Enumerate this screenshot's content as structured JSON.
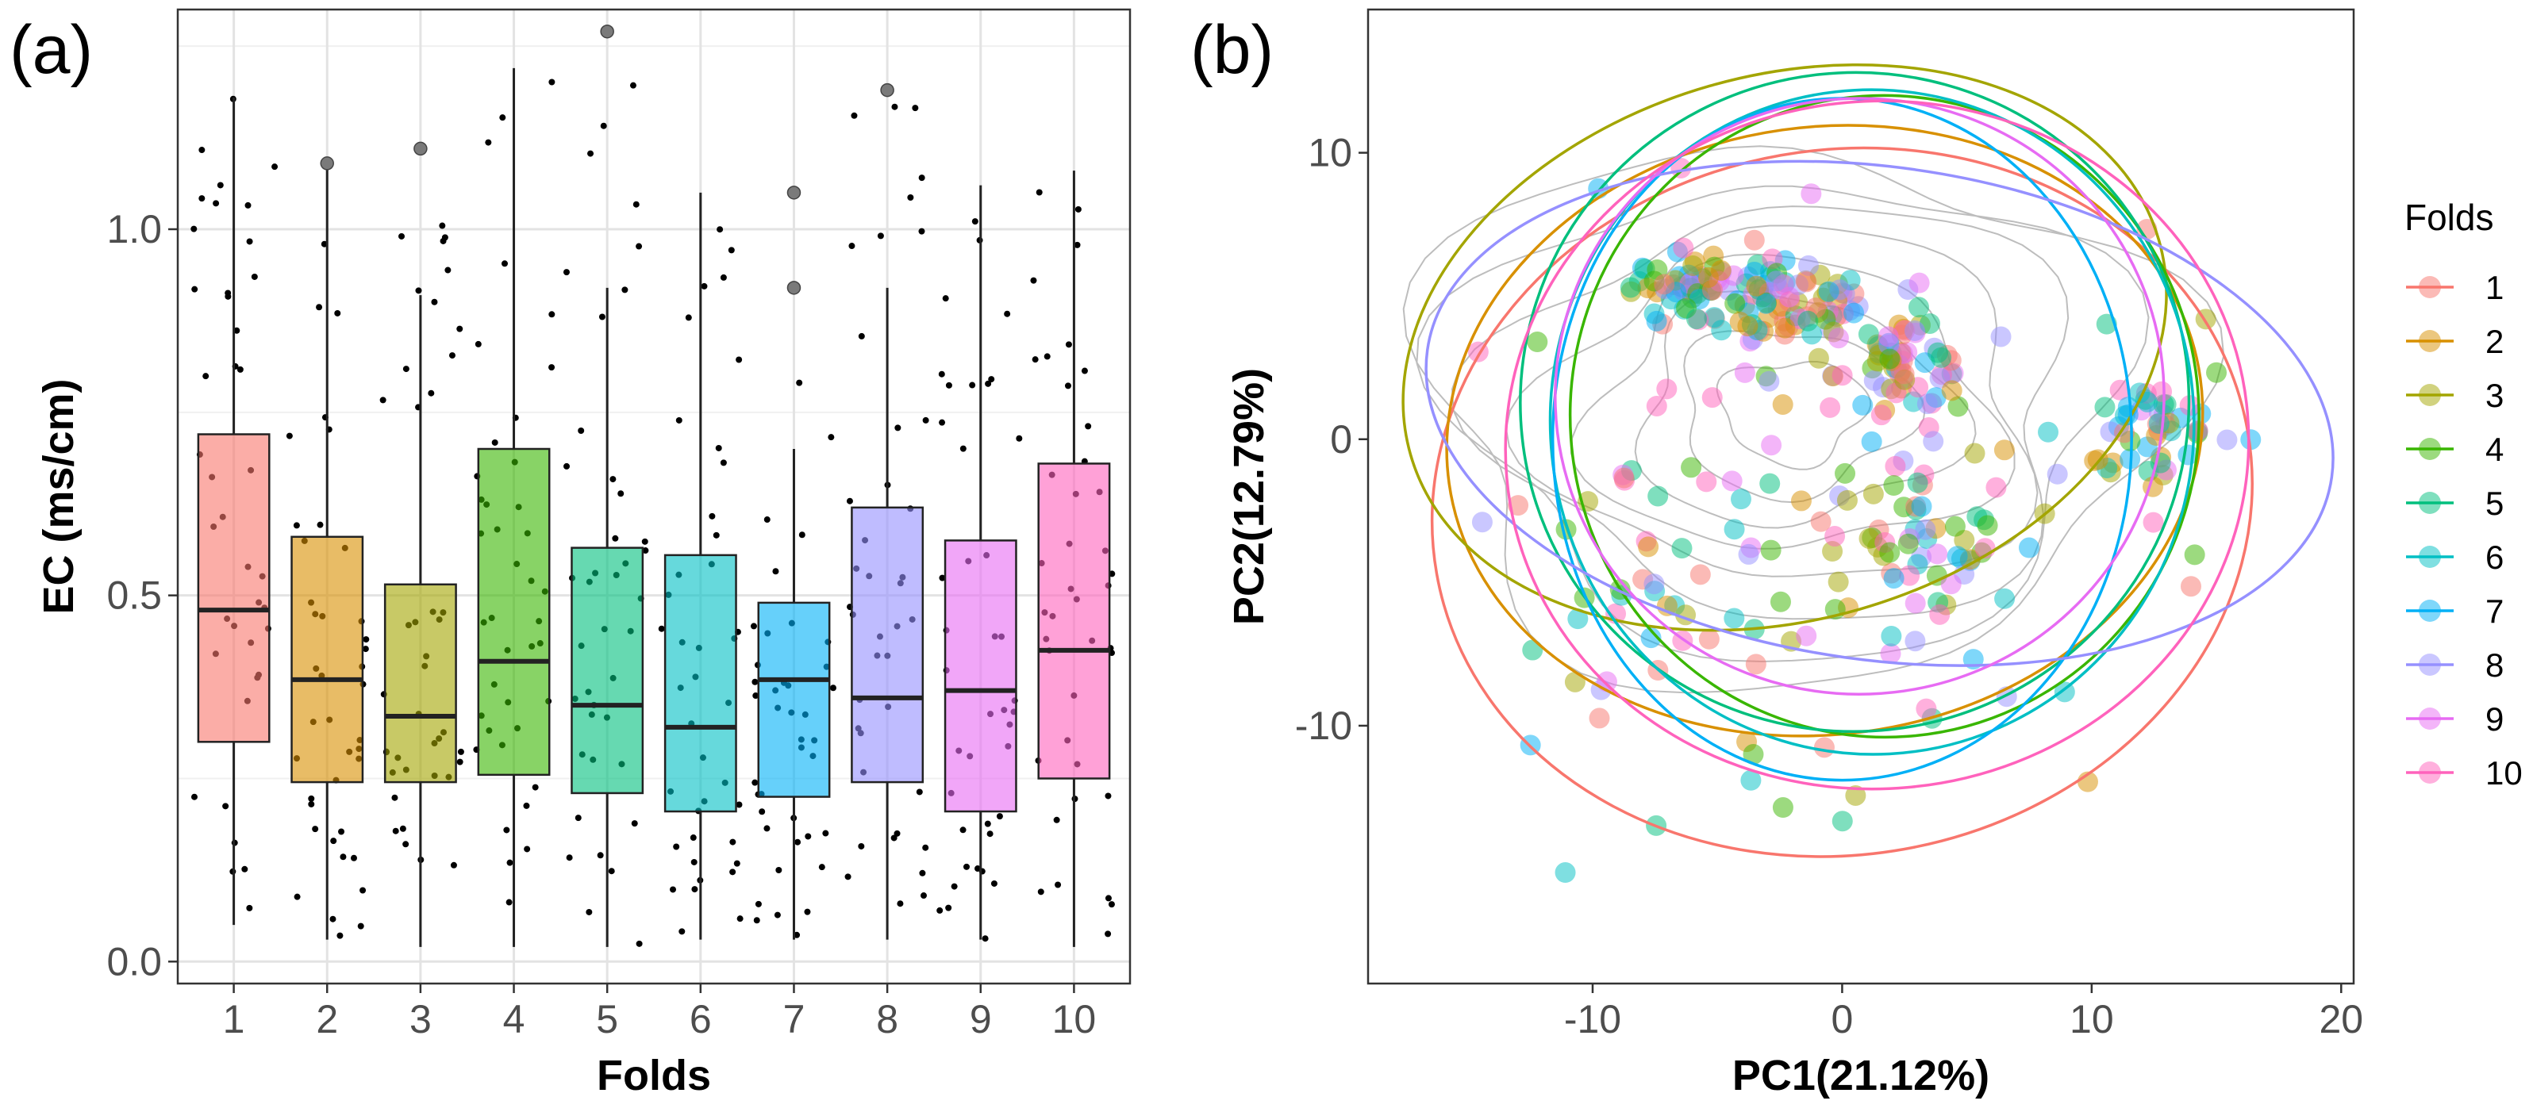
{
  "fold_colors": [
    "#F8766D",
    "#D89000",
    "#A3A500",
    "#39B600",
    "#00BF7D",
    "#00BFC4",
    "#00B0F6",
    "#9590FF",
    "#E76BF3",
    "#FF62BC"
  ],
  "chart_data": [
    {
      "panel": "(a)",
      "type": "box",
      "xlabel": "Folds",
      "ylabel": "EC (ms/cm)",
      "categories": [
        "1",
        "2",
        "3",
        "4",
        "5",
        "6",
        "7",
        "8",
        "9",
        "10"
      ],
      "ylim": [
        -0.03,
        1.3
      ],
      "yticks": [
        0.0,
        0.5,
        1.0
      ],
      "ytick_labels": [
        "0.0",
        "0.5",
        "1.0"
      ],
      "boxes": [
        {
          "fold": "1",
          "q1": 0.3,
          "median": 0.48,
          "q3": 0.72,
          "lower": 0.05,
          "upper": 1.18,
          "outliers": []
        },
        {
          "fold": "2",
          "q1": 0.245,
          "median": 0.385,
          "q3": 0.58,
          "lower": 0.03,
          "upper": 1.09,
          "outliers": [
            1.09
          ]
        },
        {
          "fold": "3",
          "q1": 0.245,
          "median": 0.335,
          "q3": 0.515,
          "lower": 0.02,
          "upper": 0.91,
          "outliers": [
            1.11
          ]
        },
        {
          "fold": "4",
          "q1": 0.255,
          "median": 0.41,
          "q3": 0.7,
          "lower": 0.02,
          "upper": 1.22,
          "outliers": []
        },
        {
          "fold": "5",
          "q1": 0.23,
          "median": 0.35,
          "q3": 0.565,
          "lower": 0.02,
          "upper": 0.92,
          "outliers": [
            1.27
          ]
        },
        {
          "fold": "6",
          "q1": 0.205,
          "median": 0.32,
          "q3": 0.555,
          "lower": 0.03,
          "upper": 1.05,
          "outliers": []
        },
        {
          "fold": "7",
          "q1": 0.225,
          "median": 0.385,
          "q3": 0.49,
          "lower": 0.03,
          "upper": 0.7,
          "outliers": [
            0.92,
            1.05
          ]
        },
        {
          "fold": "8",
          "q1": 0.245,
          "median": 0.36,
          "q3": 0.62,
          "lower": 0.03,
          "upper": 0.92,
          "outliers": [
            1.19
          ]
        },
        {
          "fold": "9",
          "q1": 0.205,
          "median": 0.37,
          "q3": 0.575,
          "lower": 0.03,
          "upper": 1.06,
          "outliers": []
        },
        {
          "fold": "10",
          "q1": 0.25,
          "median": 0.425,
          "q3": 0.68,
          "lower": 0.02,
          "upper": 1.08,
          "outliers": []
        }
      ]
    },
    {
      "panel": "(b)",
      "type": "scatter",
      "xlabel": "PC1(21.12%)",
      "ylabel": "PC2(12.79%)",
      "xlim": [
        -19,
        20.5
      ],
      "ylim": [
        -19,
        15
      ],
      "xticks": [
        -10,
        0,
        10,
        20
      ],
      "xtick_labels": [
        "-10",
        "0",
        "10",
        "20"
      ],
      "yticks": [
        -10,
        0,
        10
      ],
      "ytick_labels": [
        "-10",
        "0",
        "10"
      ],
      "legend_title": "Folds",
      "legend_position": "right",
      "legend_labels": [
        "1",
        "2",
        "3",
        "4",
        "5",
        "6",
        "7",
        "8",
        "9",
        "10"
      ],
      "clusters": [
        {
          "cx": -6,
          "cy": 5.2,
          "sx": 1.6,
          "sy": 0.7,
          "n": 70
        },
        {
          "cx": -2,
          "cy": 4.6,
          "sx": 1.8,
          "sy": 0.8,
          "n": 70
        },
        {
          "cx": 2.3,
          "cy": 2.7,
          "sx": 1.3,
          "sy": 0.8,
          "n": 60
        },
        {
          "cx": 2.5,
          "cy": -3.5,
          "sx": 2.4,
          "sy": 2.0,
          "n": 60
        },
        {
          "cx": 12.5,
          "cy": 0.3,
          "sx": 1.4,
          "sy": 1.1,
          "n": 50
        },
        {
          "cx": -6,
          "cy": -5,
          "sx": 4.5,
          "sy": 3.0,
          "n": 60
        },
        {
          "cx": 0,
          "cy": -1,
          "sx": 8,
          "sy": 6,
          "n": 40
        }
      ],
      "ellipses": [
        {
          "fold": "1",
          "cx": 0.0,
          "cy": -2.2,
          "rx": 16.5,
          "ry": 12.3,
          "angle": -10
        },
        {
          "fold": "2",
          "cx": -0.7,
          "cy": 0.3,
          "rx": 15.2,
          "ry": 10.6,
          "angle": -8
        },
        {
          "fold": "3",
          "cx": -2.3,
          "cy": 3.2,
          "rx": 15.6,
          "ry": 9.5,
          "angle": -16
        },
        {
          "fold": "4",
          "cx": 1.7,
          "cy": 0.8,
          "rx": 12.6,
          "ry": 11.2,
          "angle": -4
        },
        {
          "fold": "5",
          "cx": 0.5,
          "cy": 1.3,
          "rx": 13.4,
          "ry": 11.5,
          "angle": -6
        },
        {
          "fold": "6",
          "cx": 1.2,
          "cy": 0.6,
          "rx": 12.9,
          "ry": 11.6,
          "angle": -3
        },
        {
          "fold": "7",
          "cx": 0.0,
          "cy": 0.0,
          "rx": 11.6,
          "ry": 11.9,
          "angle": 0
        },
        {
          "fold": "8",
          "cx": 1.5,
          "cy": 0.9,
          "rx": 18.3,
          "ry": 8.6,
          "angle": 8
        },
        {
          "fold": "9",
          "cx": 0.7,
          "cy": 1.5,
          "rx": 12.2,
          "ry": 10.4,
          "angle": -2
        },
        {
          "fold": "10",
          "cx": 1.4,
          "cy": -0.2,
          "rx": 14.9,
          "ry": 12.0,
          "angle": -5
        }
      ],
      "contour_center": [
        -2,
        1
      ],
      "contour_levels": [
        2.5,
        4,
        5.5,
        7,
        8.5,
        10,
        11.5,
        13
      ]
    }
  ]
}
